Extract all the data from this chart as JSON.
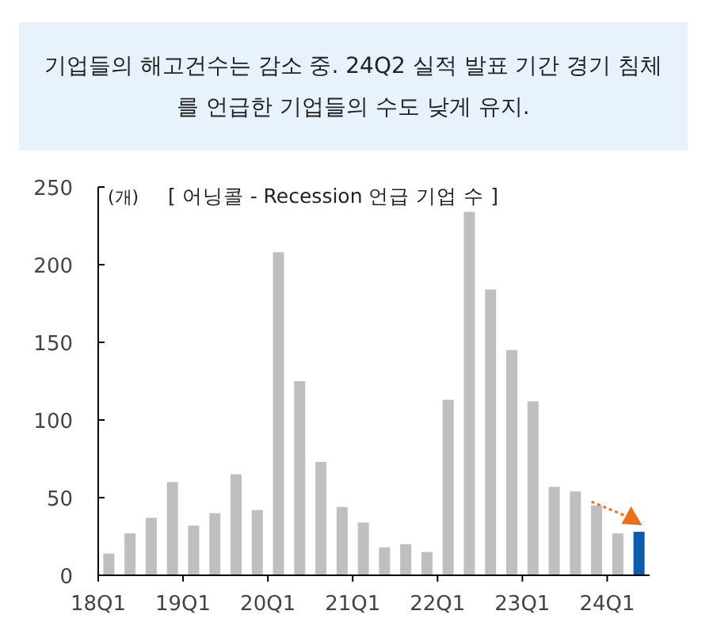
{
  "chart_data": {
    "type": "bar",
    "title": "기업들의 해고건수는 감소 중. 24Q2 실적 발표 기간 경기 침체를 언급한 기업들의 수도 낮게 유지.",
    "ylabel": "(개)",
    "subtitle": "[ 어닝콜 - Recession 언급 기업 수 ]",
    "categories": [
      "18Q1",
      null,
      null,
      null,
      "19Q1",
      null,
      null,
      null,
      "20Q1",
      null,
      null,
      null,
      "21Q1",
      null,
      null,
      null,
      "22Q1",
      null,
      null,
      null,
      "23Q1",
      null,
      null,
      null,
      "24Q1",
      null
    ],
    "values": [
      14,
      27,
      37,
      60,
      32,
      40,
      65,
      42,
      208,
      125,
      73,
      44,
      34,
      18,
      20,
      15,
      113,
      234,
      184,
      145,
      112,
      57,
      54,
      45,
      27,
      28
    ],
    "colors": [
      "#bfbfbf",
      "#bfbfbf",
      "#bfbfbf",
      "#bfbfbf",
      "#bfbfbf",
      "#bfbfbf",
      "#bfbfbf",
      "#bfbfbf",
      "#bfbfbf",
      "#bfbfbf",
      "#bfbfbf",
      "#bfbfbf",
      "#bfbfbf",
      "#bfbfbf",
      "#bfbfbf",
      "#bfbfbf",
      "#bfbfbf",
      "#bfbfbf",
      "#bfbfbf",
      "#bfbfbf",
      "#bfbfbf",
      "#bfbfbf",
      "#bfbfbf",
      "#bfbfbf",
      "#bfbfbf",
      "#0b5cad"
    ],
    "ylim": [
      0,
      250
    ],
    "yticks": [
      0,
      50,
      100,
      150,
      200,
      250
    ],
    "grid": false
  }
}
